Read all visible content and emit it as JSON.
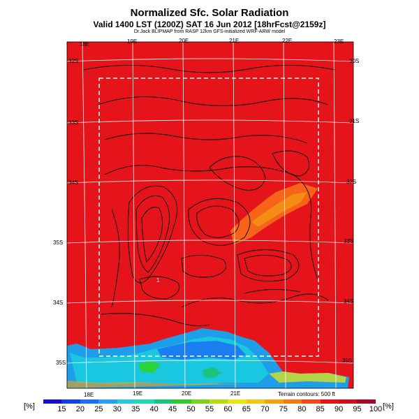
{
  "header": {
    "title": "Normalized Sfc. Solar Radiation",
    "valid_line": "Valid 1400 LST (1200Z) SAT 16 Jun 2012 [18hrFcst@2159z]",
    "credit_line": "Dr.Jack BLIPMAP from RASP 12km GFS-initialized WRF-ARW model"
  },
  "map": {
    "top_lon_labels": [
      "18E",
      "19E",
      "20E",
      "21E",
      "22E",
      "23E"
    ],
    "bottom_lon_labels": [
      "18E",
      "19E",
      "20E",
      "21E"
    ],
    "left_lat_labels": [
      "32S",
      "33S",
      "34S",
      "35S",
      "34S",
      "35S"
    ],
    "right_lat_labels": [
      "30S",
      "31S",
      "32S",
      "33S",
      "34S",
      "35S"
    ],
    "contour_marker": "1",
    "terrain_note": "Terrain contours: 500 ft",
    "background_color": "#e4141a",
    "low_color": "#1e9ee8"
  },
  "colorbar": {
    "left_unit": "[%]",
    "right_unit": "[%]",
    "ticks": [
      "15",
      "20",
      "25",
      "30",
      "35",
      "40",
      "45",
      "50",
      "55",
      "60",
      "65",
      "70",
      "75",
      "80",
      "85",
      "90",
      "95",
      "100"
    ],
    "colors": [
      "#1a10b8",
      "#1540e0",
      "#1d6ff0",
      "#2aa0f0",
      "#2bc8e0",
      "#22d8b4",
      "#1bc47a",
      "#32c832",
      "#7ad21e",
      "#b4dc14",
      "#e6e614",
      "#f0c814",
      "#f5a014",
      "#f57814",
      "#f04b14",
      "#e4141a",
      "#c8101e",
      "#a00c28"
    ]
  }
}
